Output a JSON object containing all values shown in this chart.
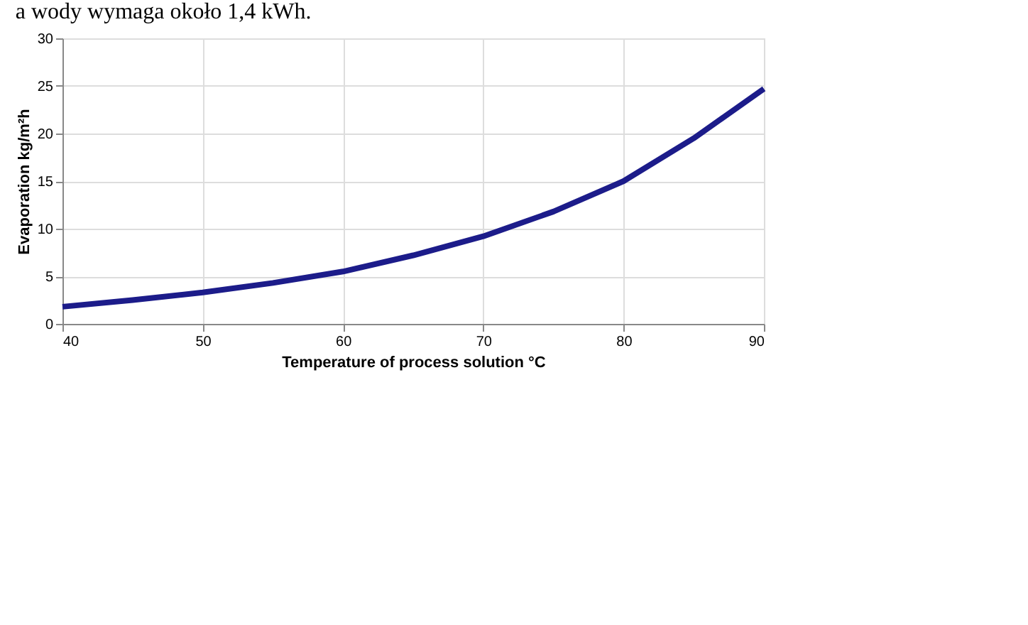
{
  "chart_data": {
    "type": "line",
    "xlabel": "Temperature of process solution °C",
    "ylabel": "Evaporation kg/m²h",
    "annotations": [
      "a wody wymaga około 1,4 kWh."
    ],
    "x": [
      40,
      45,
      50,
      55,
      60,
      65,
      70,
      75,
      80,
      85,
      90
    ],
    "series": [
      {
        "color": "#1c1c8a",
        "values": [
          1.8,
          2.5,
          3.3,
          4.3,
          5.5,
          7.2,
          9.2,
          11.8,
          15,
          19.5,
          24.7
        ]
      }
    ],
    "xlim": [
      40,
      90
    ],
    "xticks": [
      40,
      50,
      60,
      70,
      80,
      90
    ],
    "ylim": [
      0,
      30
    ],
    "yticks": [
      0,
      5,
      10,
      15,
      20,
      25,
      30
    ],
    "grid": true,
    "marker": "none",
    "line_style": "solid"
  }
}
